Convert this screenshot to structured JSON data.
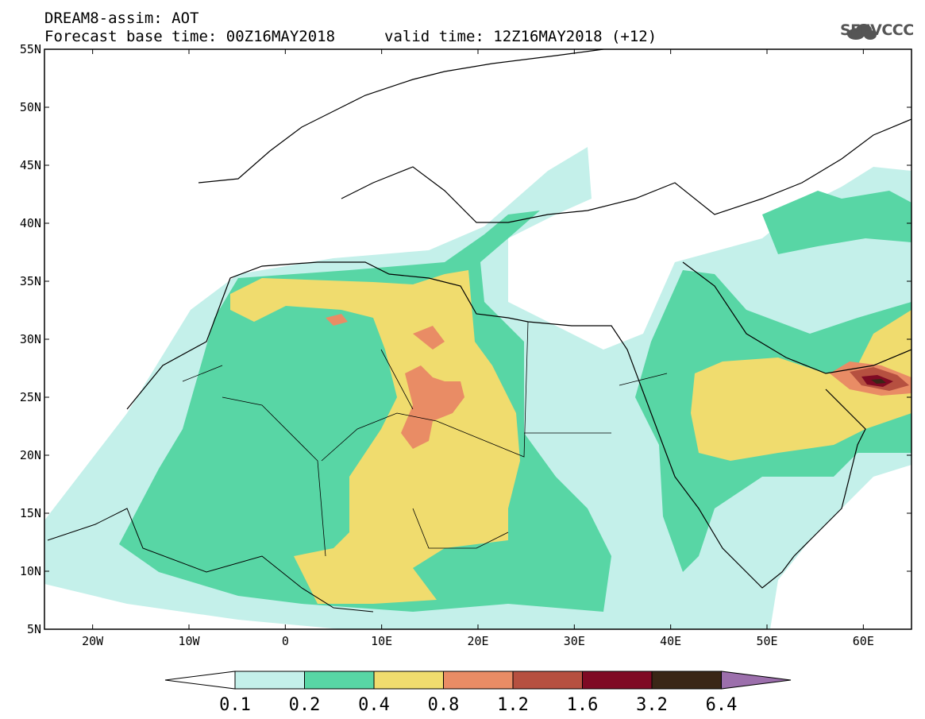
{
  "title": {
    "line1": "DREAM8-assim: AOT",
    "line2": "Forecast base time: 00Z16MAY2018",
    "valid": "valid time: 12Z16MAY2018 (+12)"
  },
  "logo_text": "SEEVCCC",
  "map": {
    "lon_range": [
      -25,
      65
    ],
    "lat_range": [
      5,
      55
    ],
    "lon_ticks": [
      "20W",
      "10W",
      "0",
      "10E",
      "20E",
      "30E",
      "40E",
      "50E",
      "60E"
    ],
    "lat_ticks": [
      "55N",
      "50N",
      "45N",
      "40N",
      "35N",
      "30N",
      "25N",
      "20N",
      "15N",
      "10N",
      "5N"
    ]
  },
  "colorbar": {
    "labels": [
      "0.1",
      "0.2",
      "0.4",
      "0.8",
      "1.2",
      "1.6",
      "3.2",
      "6.4"
    ],
    "colors": [
      "#c4f0ea",
      "#58d6a5",
      "#f0dc6e",
      "#e98c65",
      "#b65040",
      "#7f0a24",
      "#3a2616",
      "#9c6fac"
    ]
  }
}
